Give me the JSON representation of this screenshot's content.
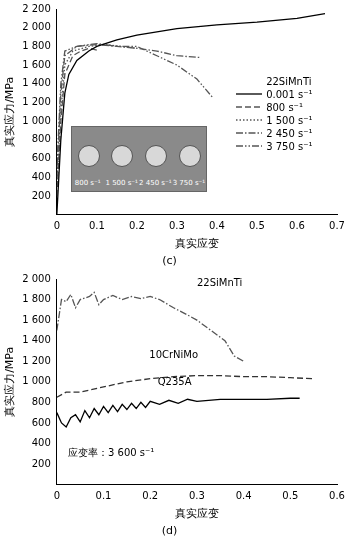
{
  "chart_data": [
    {
      "type": "line",
      "title": "(c)",
      "x_label": "真实应变",
      "y_label": "真实应力/MPa",
      "xlim": [
        0,
        0.7
      ],
      "xticks": [
        0,
        0.1,
        0.2,
        0.3,
        0.4,
        0.5,
        0.6,
        0.7
      ],
      "ylim": [
        0,
        2200
      ],
      "yticks": [
        200,
        400,
        600,
        800,
        {
          "value": 1000,
          "label": "1 000"
        },
        {
          "value": 1200,
          "label": "1 200"
        },
        {
          "value": 1400,
          "label": "1 400"
        },
        {
          "value": 1600,
          "label": "1 600"
        },
        {
          "value": 1800,
          "label": "1 800"
        },
        {
          "value": 2000,
          "label": "2 000"
        },
        {
          "value": 2200,
          "label": "2 200"
        }
      ],
      "grid": false,
      "legend": "right",
      "legend_title": "22SiMnTi",
      "annotations": [
        "800 s⁻¹",
        "1 500 s⁻¹",
        "2 450 s⁻¹",
        "3 750 s⁻¹"
      ],
      "series": [
        {
          "name": "0.001 s⁻¹",
          "color": "#000000",
          "line_style": "solid",
          "x": [
            0,
            0.01,
            0.02,
            0.03,
            0.05,
            0.08,
            0.1,
            0.15,
            0.2,
            0.3,
            0.4,
            0.5,
            0.6,
            0.67
          ],
          "values": [
            0,
            800,
            1300,
            1500,
            1650,
            1750,
            1800,
            1870,
            1920,
            1990,
            2030,
            2060,
            2100,
            2150
          ]
        },
        {
          "name": "800 s⁻¹",
          "color": "#555555",
          "line_style": "dashed",
          "x": [
            0,
            0.01,
            0.02,
            0.04,
            0.06,
            0.08,
            0.1
          ],
          "values": [
            200,
            1000,
            1500,
            1700,
            1750,
            1780,
            1760
          ]
        },
        {
          "name": "1 500 s⁻¹",
          "color": "#555555",
          "line_style": "dotted",
          "x": [
            0,
            0.01,
            0.02,
            0.04,
            0.08,
            0.12,
            0.16,
            0.2
          ],
          "values": [
            300,
            1100,
            1600,
            1750,
            1800,
            1820,
            1800,
            1780
          ]
        },
        {
          "name": "2 450 s⁻¹",
          "color": "#555555",
          "line_style": "dashdot",
          "x": [
            0,
            0.01,
            0.02,
            0.05,
            0.1,
            0.15,
            0.2,
            0.25,
            0.3,
            0.36
          ],
          "values": [
            400,
            1300,
            1700,
            1800,
            1820,
            1800,
            1780,
            1750,
            1700,
            1680
          ]
        },
        {
          "name": "3 750 s⁻¹",
          "color": "#555555",
          "line_style": "dashdotdot",
          "x": [
            0,
            0.01,
            0.02,
            0.05,
            0.1,
            0.15,
            0.2,
            0.25,
            0.3,
            0.35,
            0.39
          ],
          "values": [
            500,
            1400,
            1750,
            1800,
            1830,
            1800,
            1800,
            1700,
            1600,
            1450,
            1250
          ]
        }
      ]
    },
    {
      "type": "line",
      "title": "(d)",
      "x_label": "真实应变",
      "y_label": "真实应力/MPa",
      "xlim": [
        0,
        0.6
      ],
      "xticks": [
        0,
        0.1,
        0.2,
        0.3,
        0.4,
        0.5,
        0.6
      ],
      "ylim": [
        0,
        2000
      ],
      "yticks": [
        200,
        400,
        600,
        800,
        {
          "value": 1000,
          "label": "1 000"
        },
        {
          "value": 1200,
          "label": "1 200"
        },
        {
          "value": 1400,
          "label": "1 400"
        },
        {
          "value": 1600,
          "label": "1 600"
        },
        {
          "value": 1800,
          "label": "1 800"
        },
        {
          "value": 2000,
          "label": "2 000"
        }
      ],
      "grid": false,
      "annotations": [
        "应变率：3 600 s⁻¹"
      ],
      "series": [
        {
          "name": "22SiMnTi",
          "color": "#555555",
          "line_style": "dashdot",
          "x": [
            0,
            0.01,
            0.02,
            0.03,
            0.04,
            0.05,
            0.07,
            0.08,
            0.09,
            0.1,
            0.12,
            0.14,
            0.16,
            0.18,
            0.2,
            0.22,
            0.25,
            0.28,
            0.3,
            0.33,
            0.36,
            0.38,
            0.4
          ],
          "values": [
            1500,
            1800,
            1780,
            1850,
            1720,
            1800,
            1830,
            1870,
            1750,
            1800,
            1840,
            1800,
            1830,
            1810,
            1830,
            1800,
            1720,
            1650,
            1600,
            1500,
            1400,
            1250,
            1200
          ]
        },
        {
          "name": "10CrNiMo",
          "color": "#333333",
          "line_style": "dashed",
          "x": [
            0,
            0.02,
            0.05,
            0.1,
            0.15,
            0.2,
            0.25,
            0.3,
            0.35,
            0.4,
            0.45,
            0.5,
            0.55
          ],
          "values": [
            850,
            900,
            900,
            950,
            1000,
            1030,
            1050,
            1060,
            1060,
            1050,
            1050,
            1040,
            1030
          ]
        },
        {
          "name": "Q235A",
          "color": "#000000",
          "line_style": "solid",
          "x": [
            0,
            0.01,
            0.02,
            0.03,
            0.04,
            0.05,
            0.06,
            0.07,
            0.08,
            0.09,
            0.1,
            0.11,
            0.12,
            0.13,
            0.14,
            0.15,
            0.16,
            0.17,
            0.18,
            0.19,
            0.2,
            0.22,
            0.24,
            0.26,
            0.28,
            0.3,
            0.35,
            0.4,
            0.45,
            0.5,
            0.52
          ],
          "values": [
            700,
            600,
            560,
            650,
            680,
            610,
            720,
            650,
            740,
            680,
            760,
            700,
            770,
            710,
            780,
            730,
            790,
            740,
            800,
            750,
            810,
            780,
            820,
            790,
            830,
            810,
            830,
            830,
            830,
            840,
            840
          ]
        }
      ]
    }
  ]
}
